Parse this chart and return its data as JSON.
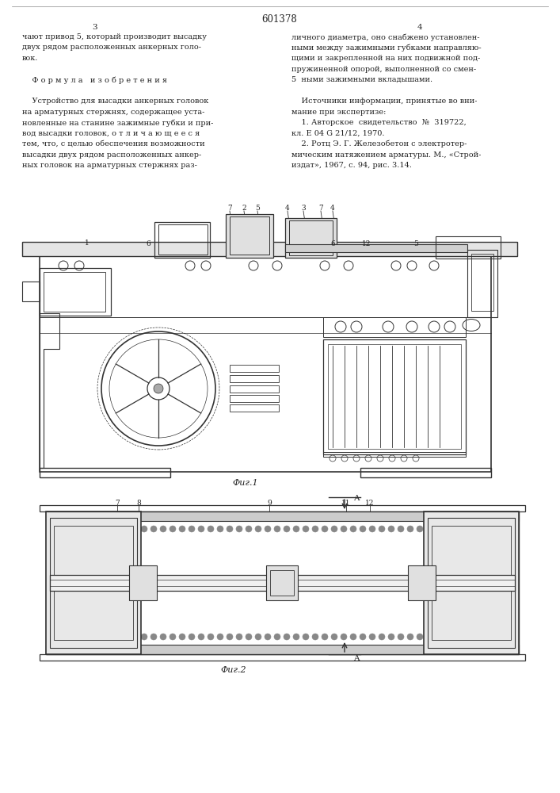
{
  "page_title": "601378",
  "page_col_left": "3",
  "page_col_right": "4",
  "bg_color": "#ffffff",
  "text_color": "#222222",
  "line_color": "#333333",
  "left_col_lines": [
    "чают привод 5, который производит высадку",
    "двух рядом расположенных анкерных голо-",
    "вок.",
    "",
    "    Ф о р м у л а   и з о б р е т е н и я",
    "",
    "    Устройство для высадки анкерных головок",
    "на арматурных стержнях, содержащее уста-",
    "новленные на станине зажимные губки и при-",
    "вод высадки головок, о т л и ч а ю щ е е с я",
    "тем, что, с целью обеспечения возможности",
    "высадки двух рядом расположенных анкер-",
    "ных головок на арматурных стержнях раз-"
  ],
  "right_col_lines": [
    "личного диаметра, оно снабжено установлен-",
    "ными между зажимными губками направляю-",
    "щими и закрепленной на них подвижной под-",
    "пружиненной опорой, выполненной со смен-",
    "5  ными зажимными вкладышами.",
    "",
    "    Источники информации, принятые во вни-",
    "мание при экспертизе:",
    "    1. Авторское  свидетельство  №  319722,",
    "кл. Е 04 G 21/12, 1970.",
    "    2. Ротц Э. Г. Железобетон с электротер-",
    "мическим натяжением арматуры. М., «Строй-",
    "издат», 1967, с. 94, рис. 3.14."
  ],
  "fig1_caption": "Фиг.1",
  "fig2_caption": "Фиг.2"
}
